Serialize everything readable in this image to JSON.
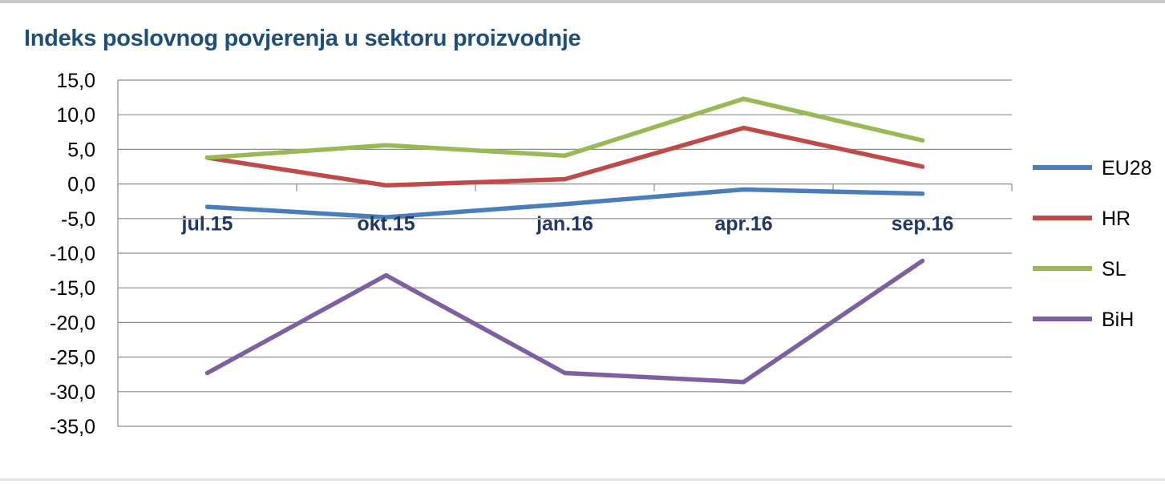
{
  "chart_data": {
    "type": "line",
    "title": "Indeks poslovnog povjerenja u sektoru proizvodnje",
    "categories": [
      "jul.15",
      "okt.15",
      "jan.16",
      "apr.16",
      "sep.16"
    ],
    "ylim": [
      -35,
      15
    ],
    "ytick_step": 5,
    "ytick_labels": [
      "15,0",
      "10,0",
      "5,0",
      "0,0",
      "-5,0",
      "-10,0",
      "-15,0",
      "-20,0",
      "-25,0",
      "-30,0",
      "-35,0"
    ],
    "grid": true,
    "legend_position": "right",
    "series": [
      {
        "name": "EU28",
        "color": "#4a7ebb",
        "values": [
          -3.3,
          -4.8,
          -2.9,
          -0.8,
          -1.4
        ]
      },
      {
        "name": "HR",
        "color": "#be4b48",
        "values": [
          3.8,
          -0.2,
          0.7,
          8.1,
          2.5
        ]
      },
      {
        "name": "SL",
        "color": "#98b954",
        "values": [
          3.8,
          5.6,
          4.1,
          12.3,
          6.3
        ]
      },
      {
        "name": "BiH",
        "color": "#7d60a0",
        "values": [
          -27.3,
          -13.2,
          -27.3,
          -28.6,
          -11.1
        ]
      }
    ]
  }
}
